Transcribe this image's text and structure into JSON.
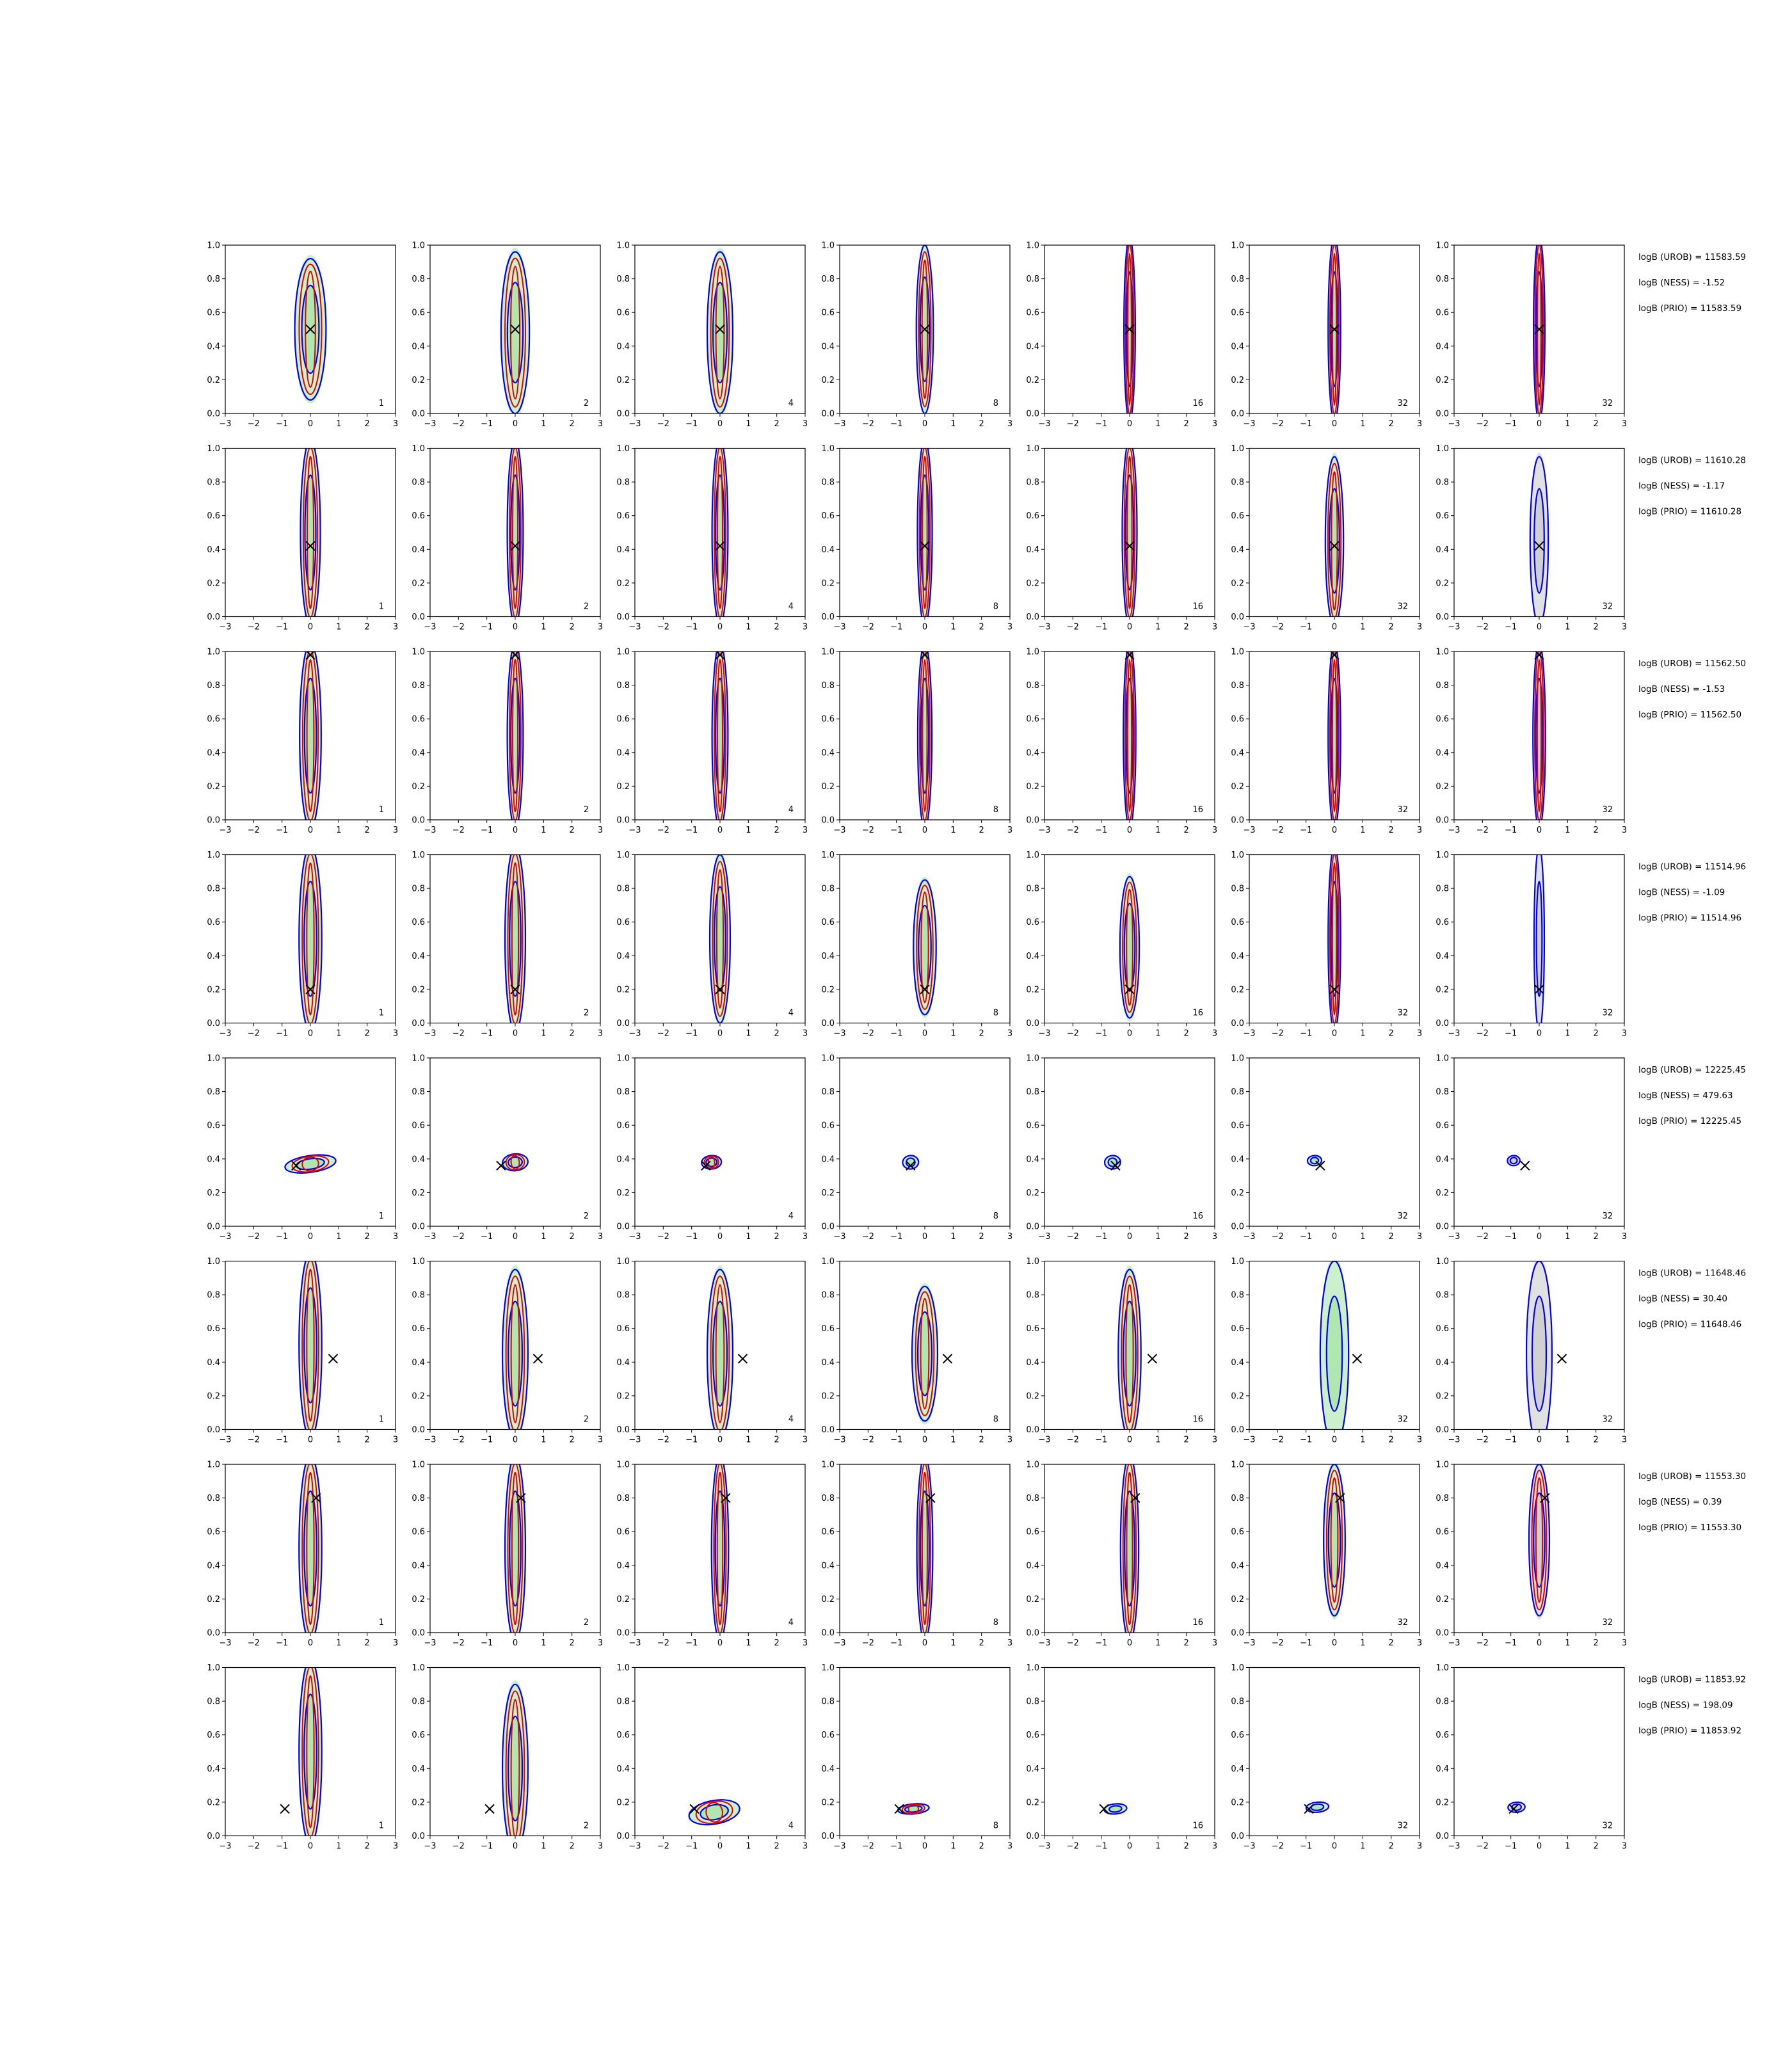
{
  "chart_data": {
    "type": "contour-grid",
    "rows": 8,
    "cols": 7,
    "xlim": [
      -3,
      3
    ],
    "ylim": [
      0.0,
      1.0
    ],
    "xticks": [
      "−3",
      "−2",
      "−1",
      "0",
      "1",
      "2",
      "3"
    ],
    "yticks": [
      "0.0",
      "0.2",
      "0.4",
      "0.6",
      "0.8",
      "1.0"
    ],
    "column_labels": [
      "1",
      "2",
      "4",
      "8",
      "16",
      "32",
      "32"
    ],
    "colors": {
      "fill_green": "#8fdc8f",
      "fill_grey": "#bdbdbd",
      "contour_blue": "#0000ee",
      "contour_red": "#e00000",
      "marker": "#000000"
    },
    "rows_data": [
      {
        "truth": [
          0.0,
          0.5
        ],
        "scores": [
          "logB (UROB) = 11583.59",
          "logB (NESS) = -1.52",
          "logB (PRIO) = 11583.59"
        ],
        "panels": [
          {
            "mu": [
              0.0,
              0.5
            ],
            "s": [
              0.55,
              0.42
            ],
            "rot": 0,
            "red": true
          },
          {
            "mu": [
              0.0,
              0.48
            ],
            "s": [
              0.5,
              0.48
            ],
            "rot": 0,
            "red": true
          },
          {
            "mu": [
              0.0,
              0.48
            ],
            "s": [
              0.45,
              0.48
            ],
            "rot": 0,
            "red": true
          },
          {
            "mu": [
              0.0,
              0.5
            ],
            "s": [
              0.3,
              0.5
            ],
            "rot": 0,
            "red": true
          },
          {
            "mu": [
              0.0,
              0.5
            ],
            "s": [
              0.2,
              0.55
            ],
            "rot": 0,
            "red": true
          },
          {
            "mu": [
              0.0,
              0.5
            ],
            "s": [
              0.22,
              0.55
            ],
            "rot": 0,
            "red": true
          },
          {
            "mu": [
              0.0,
              0.5
            ],
            "s": [
              0.2,
              0.55
            ],
            "rot": 0,
            "red": true
          }
        ]
      },
      {
        "truth": [
          0.0,
          0.42
        ],
        "scores": [
          "logB (UROB) = 11610.28",
          "logB (NESS) = -1.17",
          "logB (PRIO) = 11610.28"
        ],
        "panels": [
          {
            "mu": [
              0.0,
              0.5
            ],
            "s": [
              0.35,
              0.55
            ],
            "rot": 0,
            "red": true
          },
          {
            "mu": [
              0.0,
              0.5
            ],
            "s": [
              0.28,
              0.55
            ],
            "rot": 0,
            "red": true
          },
          {
            "mu": [
              0.0,
              0.5
            ],
            "s": [
              0.28,
              0.55
            ],
            "rot": 0,
            "red": true
          },
          {
            "mu": [
              0.0,
              0.5
            ],
            "s": [
              0.26,
              0.55
            ],
            "rot": 0,
            "red": true
          },
          {
            "mu": [
              0.0,
              0.5
            ],
            "s": [
              0.26,
              0.55
            ],
            "rot": 0,
            "red": true
          },
          {
            "mu": [
              0.0,
              0.45
            ],
            "s": [
              0.32,
              0.5
            ],
            "rot": 0,
            "red": true
          },
          {
            "mu": [
              0.0,
              0.45
            ],
            "s": [
              0.32,
              0.5
            ],
            "rot": 0,
            "red": false
          }
        ]
      },
      {
        "truth": [
          0.0,
          0.98
        ],
        "scores": [
          "logB (UROB) = 11562.50",
          "logB (NESS) = -1.53",
          "logB (PRIO) = 11562.50"
        ],
        "panels": [
          {
            "mu": [
              0.0,
              0.5
            ],
            "s": [
              0.38,
              0.55
            ],
            "rot": 0,
            "red": true
          },
          {
            "mu": [
              0.0,
              0.5
            ],
            "s": [
              0.28,
              0.55
            ],
            "rot": 0,
            "red": true
          },
          {
            "mu": [
              0.0,
              0.5
            ],
            "s": [
              0.28,
              0.55
            ],
            "rot": 0,
            "red": true
          },
          {
            "mu": [
              0.0,
              0.5
            ],
            "s": [
              0.25,
              0.55
            ],
            "rot": 0,
            "red": true
          },
          {
            "mu": [
              0.0,
              0.5
            ],
            "s": [
              0.22,
              0.55
            ],
            "rot": 0,
            "red": true
          },
          {
            "mu": [
              0.0,
              0.5
            ],
            "s": [
              0.22,
              0.55
            ],
            "rot": 0,
            "red": true
          },
          {
            "mu": [
              0.0,
              0.5
            ],
            "s": [
              0.22,
              0.55
            ],
            "rot": 0,
            "red": true
          }
        ]
      },
      {
        "truth": [
          0.0,
          0.2
        ],
        "scores": [
          "logB (UROB) = 11514.96",
          "logB (NESS) = -1.09",
          "logB (PRIO) = 11514.96"
        ],
        "panels": [
          {
            "mu": [
              0.0,
              0.5
            ],
            "s": [
              0.4,
              0.55
            ],
            "rot": 0,
            "red": true
          },
          {
            "mu": [
              0.0,
              0.5
            ],
            "s": [
              0.36,
              0.55
            ],
            "rot": 0,
            "red": true
          },
          {
            "mu": [
              0.0,
              0.5
            ],
            "s": [
              0.36,
              0.5
            ],
            "rot": 0,
            "red": true
          },
          {
            "mu": [
              0.0,
              0.45
            ],
            "s": [
              0.4,
              0.4
            ],
            "rot": 0,
            "red": true
          },
          {
            "mu": [
              0.0,
              0.45
            ],
            "s": [
              0.34,
              0.42
            ],
            "rot": 0,
            "red": true
          },
          {
            "mu": [
              0.0,
              0.5
            ],
            "s": [
              0.22,
              0.55
            ],
            "rot": 0,
            "red": true
          },
          {
            "mu": [
              0.0,
              0.5
            ],
            "s": [
              0.18,
              0.55
            ],
            "rot": 0,
            "red": false
          }
        ]
      },
      {
        "truth": [
          -0.5,
          0.36
        ],
        "scores": [
          "logB (UROB) = 12225.45",
          "logB (NESS) = 479.63",
          "logB (PRIO) = 12225.45"
        ],
        "panels": [
          {
            "mu": [
              0.0,
              0.37
            ],
            "s": [
              0.9,
              0.05
            ],
            "rot": -8,
            "red": true
          },
          {
            "mu": [
              0.0,
              0.38
            ],
            "s": [
              0.45,
              0.05
            ],
            "rot": -5,
            "red": true
          },
          {
            "mu": [
              -0.3,
              0.38
            ],
            "s": [
              0.35,
              0.04
            ],
            "rot": -4,
            "red": true
          },
          {
            "mu": [
              -0.5,
              0.38
            ],
            "s": [
              0.28,
              0.04
            ],
            "rot": -4,
            "red": false
          },
          {
            "mu": [
              -0.6,
              0.38
            ],
            "s": [
              0.28,
              0.04
            ],
            "rot": -4,
            "red": false
          },
          {
            "mu": [
              -0.7,
              0.39
            ],
            "s": [
              0.25,
              0.03
            ],
            "rot": -3,
            "red": false
          },
          {
            "mu": [
              -0.9,
              0.39
            ],
            "s": [
              0.22,
              0.03
            ],
            "rot": -3,
            "red": false
          }
        ]
      },
      {
        "truth": [
          0.8,
          0.42
        ],
        "scores": [
          "logB (UROB) = 11648.46",
          "logB (NESS) = 30.40",
          "logB (PRIO) = 11648.46"
        ],
        "panels": [
          {
            "mu": [
              0.0,
              0.5
            ],
            "s": [
              0.4,
              0.55
            ],
            "rot": 0,
            "red": true
          },
          {
            "mu": [
              0.0,
              0.45
            ],
            "s": [
              0.45,
              0.5
            ],
            "rot": 0,
            "red": true
          },
          {
            "mu": [
              0.0,
              0.45
            ],
            "s": [
              0.45,
              0.5
            ],
            "rot": 0,
            "red": true
          },
          {
            "mu": [
              0.0,
              0.45
            ],
            "s": [
              0.45,
              0.4
            ],
            "rot": 0,
            "red": true
          },
          {
            "mu": [
              0.0,
              0.45
            ],
            "s": [
              0.4,
              0.5
            ],
            "rot": 0,
            "red": true
          },
          {
            "mu": [
              0.0,
              0.45
            ],
            "s": [
              0.5,
              0.55
            ],
            "rot": 0,
            "red": false
          },
          {
            "mu": [
              0.0,
              0.45
            ],
            "s": [
              0.45,
              0.55
            ],
            "rot": 0,
            "red": false
          }
        ]
      },
      {
        "truth": [
          0.2,
          0.8
        ],
        "scores": [
          "logB (UROB) = 11553.30",
          "logB (NESS) = 0.39",
          "logB (PRIO) = 11553.30"
        ],
        "panels": [
          {
            "mu": [
              0.0,
              0.5
            ],
            "s": [
              0.4,
              0.55
            ],
            "rot": 0,
            "red": true
          },
          {
            "mu": [
              0.0,
              0.5
            ],
            "s": [
              0.36,
              0.55
            ],
            "rot": 0,
            "red": true
          },
          {
            "mu": [
              0.0,
              0.5
            ],
            "s": [
              0.3,
              0.55
            ],
            "rot": 0,
            "red": true
          },
          {
            "mu": [
              0.0,
              0.5
            ],
            "s": [
              0.28,
              0.55
            ],
            "rot": 0,
            "red": true
          },
          {
            "mu": [
              0.0,
              0.5
            ],
            "s": [
              0.32,
              0.55
            ],
            "rot": 0,
            "red": true
          },
          {
            "mu": [
              0.0,
              0.55
            ],
            "s": [
              0.38,
              0.45
            ],
            "rot": 0,
            "red": true
          },
          {
            "mu": [
              0.0,
              0.55
            ],
            "s": [
              0.36,
              0.45
            ],
            "rot": 0,
            "red": true
          }
        ]
      },
      {
        "truth": [
          -0.9,
          0.16
        ],
        "scores": [
          "logB (UROB) = 11853.92",
          "logB (NESS) = 198.09",
          "logB (PRIO) = 11853.92"
        ],
        "panels": [
          {
            "mu": [
              0.0,
              0.5
            ],
            "s": [
              0.4,
              0.55
            ],
            "rot": 0,
            "red": true
          },
          {
            "mu": [
              0.0,
              0.4
            ],
            "s": [
              0.45,
              0.5
            ],
            "rot": 0,
            "red": true
          },
          {
            "mu": [
              -0.2,
              0.14
            ],
            "s": [
              0.9,
              0.07
            ],
            "rot": -10,
            "red": true
          },
          {
            "mu": [
              -0.4,
              0.16
            ],
            "s": [
              0.55,
              0.03
            ],
            "rot": -5,
            "red": true
          },
          {
            "mu": [
              -0.5,
              0.16
            ],
            "s": [
              0.4,
              0.03
            ],
            "rot": -5,
            "red": false
          },
          {
            "mu": [
              -0.6,
              0.17
            ],
            "s": [
              0.4,
              0.03
            ],
            "rot": -5,
            "red": false
          },
          {
            "mu": [
              -0.8,
              0.17
            ],
            "s": [
              0.3,
              0.03
            ],
            "rot": -4,
            "red": false
          }
        ]
      }
    ]
  }
}
